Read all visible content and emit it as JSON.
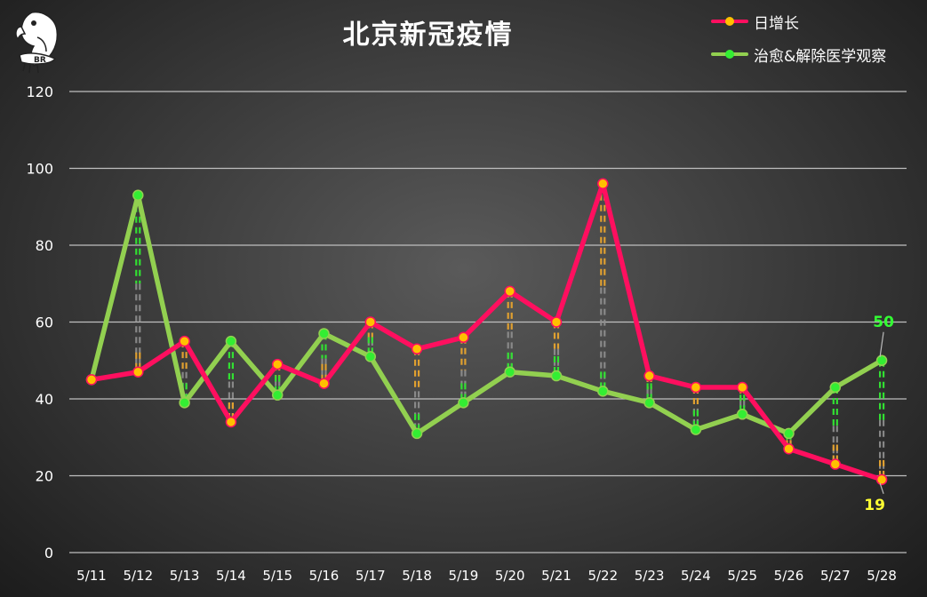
{
  "chart_data": {
    "type": "line",
    "title": "北京新冠疫情",
    "categories": [
      "5/11",
      "5/12",
      "5/13",
      "5/14",
      "5/15",
      "5/16",
      "5/17",
      "5/18",
      "5/19",
      "5/20",
      "5/21",
      "5/22",
      "5/23",
      "5/24",
      "5/25",
      "5/26",
      "5/27",
      "5/28"
    ],
    "series": [
      {
        "name": "日增长",
        "color": "#ff0f5f",
        "marker_color": "#ffc000",
        "values": [
          45,
          47,
          55,
          34,
          49,
          44,
          60,
          53,
          56,
          68,
          60,
          96,
          46,
          43,
          43,
          27,
          23,
          19
        ]
      },
      {
        "name": "治愈&解除医学观察",
        "color": "#92d050",
        "marker_color": "#33ee33",
        "values": [
          45,
          93,
          39,
          55,
          41,
          57,
          51,
          31,
          39,
          47,
          46,
          42,
          39,
          32,
          36,
          31,
          43,
          50
        ]
      }
    ],
    "ylim": [
      0,
      120
    ],
    "yticks": [
      0,
      20,
      40,
      60,
      80,
      100,
      120
    ],
    "grid": true,
    "legend_position": "top-right",
    "annotations": [
      {
        "text": "50",
        "color": "#33ff33",
        "series": 1,
        "index": 17
      },
      {
        "text": "19",
        "color": "#ffff33",
        "series": 0,
        "index": 17
      }
    ],
    "logo_text": "BR"
  }
}
